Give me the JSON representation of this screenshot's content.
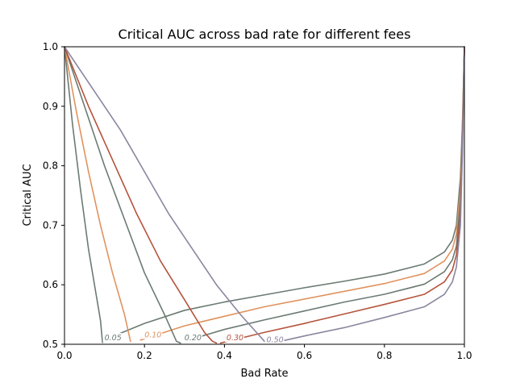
{
  "chart_data": {
    "type": "line",
    "title": "Critical AUC across bad rate for different fees",
    "xlabel": "Bad Rate",
    "ylabel": "Critical AUC",
    "xlim": [
      0.0,
      1.0
    ],
    "ylim": [
      0.5,
      1.0
    ],
    "xticks": [
      "0.0",
      "0.2",
      "0.4",
      "0.6",
      "0.8",
      "1.0"
    ],
    "yticks": [
      "0.5",
      "0.6",
      "0.7",
      "0.8",
      "0.9",
      "1.0"
    ],
    "grid": false,
    "legend": "none",
    "series": [
      {
        "name": "0.05",
        "color": "#6b7b72",
        "falling": [
          [
            0.0,
            1.0
          ],
          [
            0.02,
            0.87
          ],
          [
            0.04,
            0.76
          ],
          [
            0.06,
            0.66
          ],
          [
            0.08,
            0.58
          ],
          [
            0.09,
            0.54
          ],
          [
            0.095,
            0.503
          ]
        ],
        "rising": [
          [
            0.12,
            0.513
          ],
          [
            0.2,
            0.535
          ],
          [
            0.3,
            0.557
          ],
          [
            0.4,
            0.571
          ],
          [
            0.5,
            0.583
          ],
          [
            0.6,
            0.595
          ],
          [
            0.7,
            0.606
          ],
          [
            0.8,
            0.618
          ],
          [
            0.9,
            0.635
          ],
          [
            0.95,
            0.655
          ],
          [
            0.97,
            0.675
          ],
          [
            0.98,
            0.7
          ],
          [
            0.99,
            0.78
          ],
          [
            0.995,
            0.87
          ],
          [
            1.0,
            1.0
          ]
        ]
      },
      {
        "name": "0.10",
        "color": "#e0935f",
        "falling": [
          [
            0.0,
            1.0
          ],
          [
            0.03,
            0.89
          ],
          [
            0.06,
            0.79
          ],
          [
            0.09,
            0.7
          ],
          [
            0.12,
            0.62
          ],
          [
            0.15,
            0.55
          ],
          [
            0.165,
            0.505
          ]
        ],
        "rising": [
          [
            0.19,
            0.507
          ],
          [
            0.3,
            0.531
          ],
          [
            0.4,
            0.547
          ],
          [
            0.5,
            0.563
          ],
          [
            0.6,
            0.576
          ],
          [
            0.7,
            0.589
          ],
          [
            0.8,
            0.602
          ],
          [
            0.9,
            0.619
          ],
          [
            0.95,
            0.64
          ],
          [
            0.97,
            0.66
          ],
          [
            0.98,
            0.685
          ],
          [
            0.99,
            0.76
          ],
          [
            0.995,
            0.86
          ],
          [
            1.0,
            1.0
          ]
        ]
      },
      {
        "name": "0.20",
        "color": "#6b7b72",
        "falling": [
          [
            0.0,
            1.0
          ],
          [
            0.05,
            0.9
          ],
          [
            0.1,
            0.8
          ],
          [
            0.15,
            0.71
          ],
          [
            0.2,
            0.62
          ],
          [
            0.25,
            0.55
          ],
          [
            0.28,
            0.505
          ],
          [
            0.29,
            0.502
          ]
        ],
        "rising": [
          [
            0.3,
            0.505
          ],
          [
            0.4,
            0.525
          ],
          [
            0.5,
            0.541
          ],
          [
            0.6,
            0.556
          ],
          [
            0.7,
            0.571
          ],
          [
            0.8,
            0.584
          ],
          [
            0.9,
            0.601
          ],
          [
            0.95,
            0.622
          ],
          [
            0.97,
            0.642
          ],
          [
            0.98,
            0.665
          ],
          [
            0.99,
            0.74
          ],
          [
            0.995,
            0.85
          ],
          [
            1.0,
            1.0
          ]
        ]
      },
      {
        "name": "0.30",
        "color": "#b5533c",
        "falling": [
          [
            0.0,
            1.0
          ],
          [
            0.06,
            0.9
          ],
          [
            0.12,
            0.81
          ],
          [
            0.18,
            0.72
          ],
          [
            0.24,
            0.64
          ],
          [
            0.3,
            0.575
          ],
          [
            0.35,
            0.52
          ],
          [
            0.37,
            0.505
          ],
          [
            0.38,
            0.502
          ]
        ],
        "rising": [
          [
            0.39,
            0.502
          ],
          [
            0.5,
            0.52
          ],
          [
            0.6,
            0.535
          ],
          [
            0.7,
            0.551
          ],
          [
            0.8,
            0.567
          ],
          [
            0.9,
            0.584
          ],
          [
            0.95,
            0.605
          ],
          [
            0.97,
            0.625
          ],
          [
            0.98,
            0.65
          ],
          [
            0.99,
            0.72
          ],
          [
            0.995,
            0.84
          ],
          [
            1.0,
            1.0
          ]
        ]
      },
      {
        "name": "0.50",
        "color": "#8c859e",
        "falling": [
          [
            0.0,
            1.0
          ],
          [
            0.07,
            0.93
          ],
          [
            0.14,
            0.86
          ],
          [
            0.2,
            0.79
          ],
          [
            0.26,
            0.72
          ],
          [
            0.32,
            0.66
          ],
          [
            0.38,
            0.6
          ],
          [
            0.44,
            0.55
          ],
          [
            0.48,
            0.52
          ],
          [
            0.5,
            0.505
          ]
        ],
        "rising": [
          [
            0.54,
            0.505
          ],
          [
            0.6,
            0.514
          ],
          [
            0.7,
            0.528
          ],
          [
            0.8,
            0.545
          ],
          [
            0.9,
            0.563
          ],
          [
            0.95,
            0.584
          ],
          [
            0.97,
            0.605
          ],
          [
            0.98,
            0.63
          ],
          [
            0.99,
            0.7
          ],
          [
            0.995,
            0.82
          ],
          [
            1.0,
            1.0
          ]
        ]
      }
    ],
    "inline_labels": [
      {
        "text": "0.05",
        "x": 0.1,
        "y": 0.508,
        "color": "#6b7b72"
      },
      {
        "text": "0.10",
        "x": 0.2,
        "y": 0.513,
        "color": "#e0935f"
      },
      {
        "text": "0.20",
        "x": 0.3,
        "y": 0.508,
        "color": "#6b7b72"
      },
      {
        "text": "0.30",
        "x": 0.405,
        "y": 0.508,
        "color": "#b5533c"
      },
      {
        "text": "0.50",
        "x": 0.505,
        "y": 0.505,
        "color": "#8c859e"
      }
    ]
  }
}
